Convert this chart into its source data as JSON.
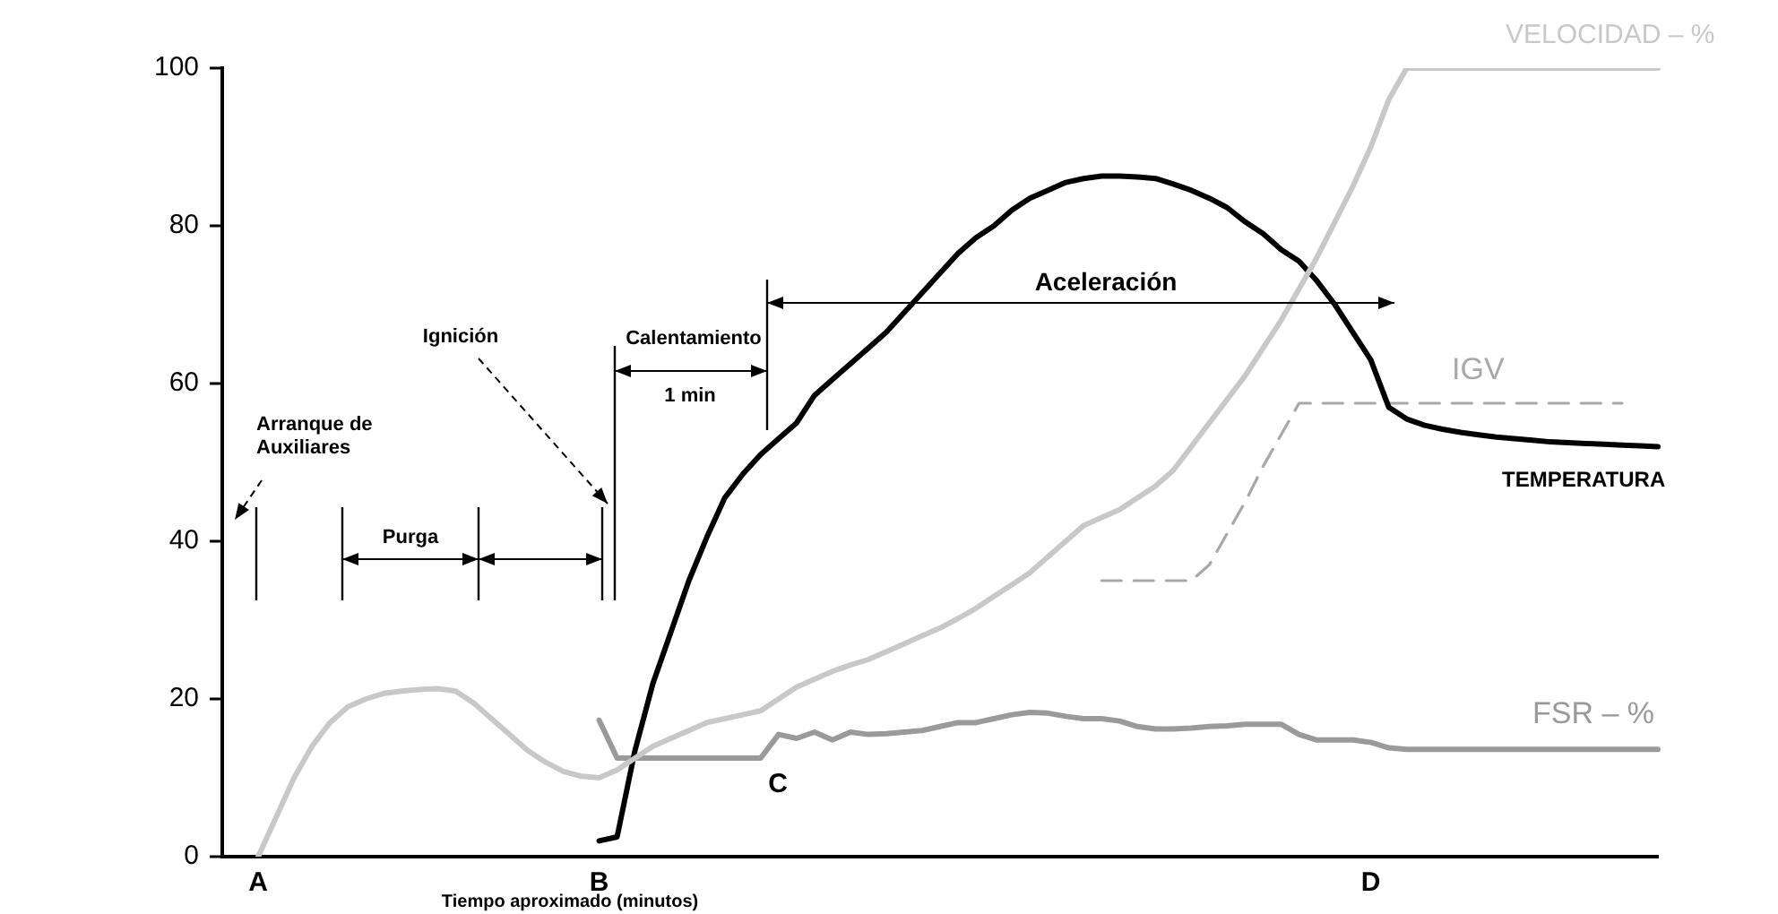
{
  "chart_data": {
    "type": "line",
    "xlabel": "Tiempo aproximado (minutos)",
    "marker": "none",
    "categories": [
      null,
      null,
      "A",
      null,
      null,
      null,
      null,
      null,
      null,
      null,
      null,
      null,
      null,
      null,
      null,
      null,
      null,
      null,
      null,
      null,
      null,
      "B",
      null,
      null,
      null,
      null,
      null,
      null,
      null,
      null,
      null,
      null,
      null,
      null,
      null,
      null,
      null,
      null,
      null,
      null,
      null,
      null,
      null,
      null,
      null,
      null,
      null,
      null,
      null,
      null,
      null,
      null,
      null,
      null,
      null,
      null,
      null,
      null,
      null,
      null,
      null,
      null,
      null,
      null,
      "D",
      null,
      null,
      null,
      null,
      null,
      null,
      null,
      null,
      null,
      null,
      null,
      null,
      null,
      null,
      null,
      null
    ],
    "ylim": [
      0,
      100
    ],
    "yticks": [
      0,
      20,
      40,
      60,
      80,
      100
    ],
    "series": [
      {
        "name": "VELOCIDAD – %",
        "color": "#c8c8c8",
        "values": [
          null,
          null,
          0,
          5,
          10,
          14,
          17,
          19,
          20,
          20.7,
          21,
          21.2,
          21.3,
          21,
          19.5,
          17.5,
          15.5,
          13.5,
          12,
          10.8,
          10.2,
          10,
          11,
          12.5,
          14,
          15,
          16,
          17,
          17.5,
          18,
          18.5,
          20,
          21.5,
          22.5,
          23.5,
          24.3,
          25,
          26,
          27,
          28,
          29,
          30.2,
          31.5,
          33,
          34.5,
          36,
          38,
          40,
          42,
          43,
          44,
          45.5,
          47,
          49,
          52,
          55,
          58,
          61,
          64.5,
          68,
          72,
          76,
          80.5,
          85,
          90,
          96,
          100,
          100,
          100,
          100,
          100,
          100,
          100,
          100,
          100,
          100,
          100,
          100,
          100,
          100,
          100
        ]
      },
      {
        "name": "TEMPERATURA",
        "color": "#000000",
        "values": [
          null,
          null,
          null,
          null,
          null,
          null,
          null,
          null,
          null,
          null,
          null,
          null,
          null,
          null,
          null,
          null,
          null,
          null,
          null,
          null,
          null,
          2,
          2.5,
          13.5,
          22,
          28.5,
          35,
          40.5,
          45.5,
          48.5,
          51,
          53,
          55,
          58.5,
          60.5,
          62.5,
          64.5,
          66.5,
          69,
          71.5,
          74,
          76.5,
          78.5,
          80,
          82,
          83.5,
          84.5,
          85.5,
          86,
          86.3,
          86.3,
          86.2,
          86,
          85.3,
          84.5,
          83.5,
          82.3,
          80.5,
          79,
          77,
          75.5,
          73,
          70,
          66.5,
          63,
          57,
          55.5,
          54.7,
          54.2,
          53.8,
          53.5,
          53.2,
          53,
          52.8,
          52.6,
          52.5,
          52.4,
          52.3,
          52.2,
          52.1,
          52
        ]
      },
      {
        "name": "IGV",
        "color": "#a8a8a8",
        "line_style": "dashed",
        "values": [
          null,
          null,
          null,
          null,
          null,
          null,
          null,
          null,
          null,
          null,
          null,
          null,
          null,
          null,
          null,
          null,
          null,
          null,
          null,
          null,
          null,
          null,
          null,
          null,
          null,
          null,
          null,
          null,
          null,
          null,
          null,
          null,
          null,
          null,
          null,
          null,
          null,
          null,
          null,
          null,
          null,
          null,
          null,
          null,
          null,
          null,
          null,
          null,
          null,
          35,
          35,
          35,
          35,
          35,
          35,
          37,
          41,
          45,
          49.5,
          53.5,
          57.5,
          57.5,
          57.5,
          57.5,
          57.5,
          57.5,
          57.5,
          57.5,
          57.5,
          57.5,
          57.5,
          57.5,
          57.5,
          57.5,
          57.5,
          57.5,
          57.5,
          57.5,
          57.5,
          null,
          null
        ]
      },
      {
        "name": "FSR – %",
        "color": "#9a9a9a",
        "values": [
          null,
          null,
          null,
          null,
          null,
          null,
          null,
          null,
          null,
          null,
          null,
          null,
          null,
          null,
          null,
          null,
          null,
          null,
          null,
          null,
          null,
          17.3,
          12.5,
          12.5,
          12.5,
          12.5,
          12.5,
          12.5,
          12.5,
          12.5,
          12.5,
          15.5,
          15,
          15.8,
          14.8,
          15.8,
          15.5,
          15.6,
          15.8,
          16,
          16.5,
          17,
          17,
          17.5,
          18,
          18.3,
          18.2,
          17.8,
          17.5,
          17.5,
          17.2,
          16.5,
          16.2,
          16.2,
          16.3,
          16.5,
          16.6,
          16.8,
          16.8,
          16.8,
          15.5,
          14.8,
          14.8,
          14.8,
          14.5,
          13.8,
          13.6,
          13.6,
          13.6,
          13.6,
          13.6,
          13.6,
          13.6,
          13.6,
          13.6,
          13.6,
          13.6,
          13.6,
          13.6,
          13.6,
          13.6
        ]
      }
    ],
    "annotations": [
      "Arranque de Auxiliares",
      "Ignición",
      "Purga",
      "Calentamiento",
      "1 min",
      "Aceleración",
      "C"
    ]
  }
}
